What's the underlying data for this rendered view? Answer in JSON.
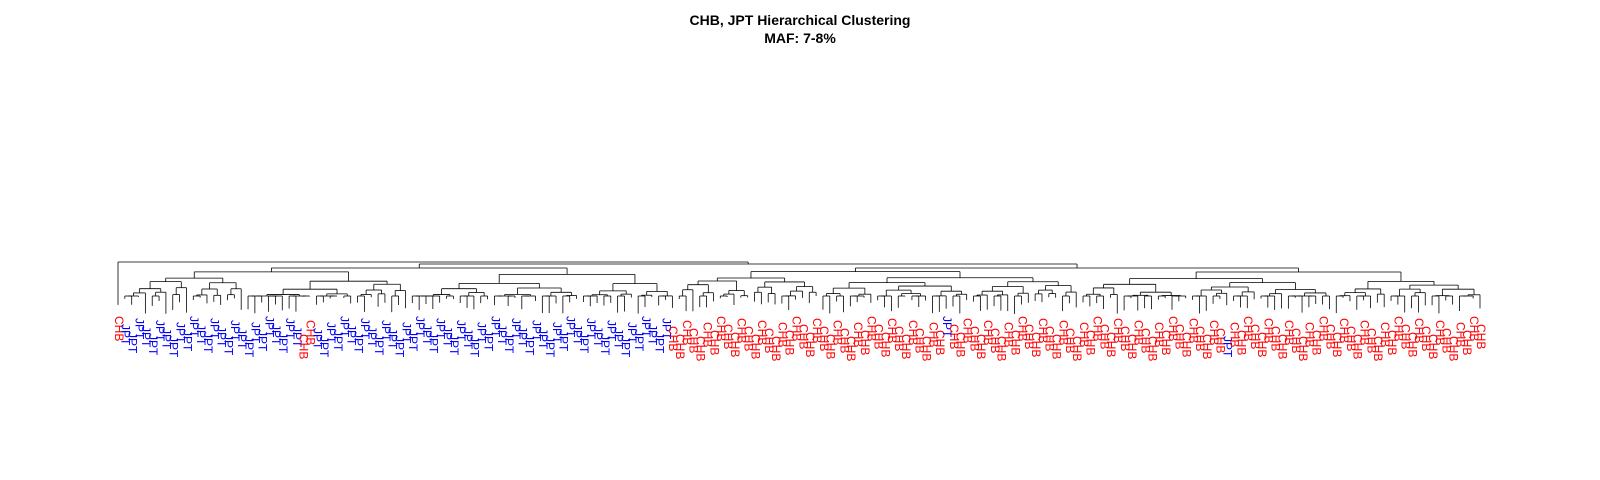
{
  "chart_data": {
    "type": "dendrogram",
    "title": "CHB, JPT Hierarchical Clustering",
    "subtitle": "MAF: 7-8%",
    "xlabel": "",
    "ylabel": "",
    "grid": false,
    "legend": "none",
    "colors": {
      "CHB": "#ff0000",
      "JPT": "#0000ff",
      "branches": "#000000"
    },
    "top_split": [
      "outlier CHB sample",
      "JPT cluster (with 3 CHB)",
      "CHB cluster (with 2 JPT)"
    ],
    "leaves": [
      "CHB",
      "JPT",
      "JPT",
      "JPT",
      "JPT",
      "JPT",
      "JPT",
      "JPT",
      "JPT",
      "JPT",
      "JPT",
      "JPT",
      "JPT",
      "JPT",
      "JPT",
      "JPT",
      "JPT",
      "JPT",
      "JPT",
      "JPT",
      "JPT",
      "JPT",
      "JPT",
      "JPT",
      "JPT",
      "JPT",
      "JPT",
      "CHB",
      "CHB",
      "JPT",
      "JPT",
      "JPT",
      "JPT",
      "JPT",
      "JPT",
      "JPT",
      "JPT",
      "JPT",
      "JPT",
      "JPT",
      "JPT",
      "JPT",
      "JPT",
      "JPT",
      "JPT",
      "JPT",
      "JPT",
      "JPT",
      "JPT",
      "JPT",
      "JPT",
      "JPT",
      "JPT",
      "JPT",
      "JPT",
      "JPT",
      "JPT",
      "JPT",
      "JPT",
      "JPT",
      "JPT",
      "JPT",
      "JPT",
      "JPT",
      "JPT",
      "JPT",
      "JPT",
      "JPT",
      "JPT",
      "JPT",
      "JPT",
      "JPT",
      "JPT",
      "JPT",
      "JPT",
      "JPT",
      "JPT",
      "JPT",
      "JPT",
      "JPT",
      "JPT",
      "CHB",
      "CHB",
      "CHB",
      "CHB",
      "CHB",
      "CHB",
      "CHB",
      "CHB",
      "CHB",
      "CHB",
      "CHB",
      "CHB",
      "CHB",
      "CHB",
      "CHB",
      "CHB",
      "CHB",
      "CHB",
      "CHB",
      "CHB",
      "CHB",
      "CHB",
      "CHB",
      "CHB",
      "CHB",
      "CHB",
      "CHB",
      "CHB",
      "CHB",
      "CHB",
      "CHB",
      "CHB",
      "CHB",
      "CHB",
      "CHB",
      "CHB",
      "CHB",
      "CHB",
      "CHB",
      "CHB",
      "JPT",
      "CHB",
      "CHB",
      "CHB",
      "CHB",
      "CHB",
      "CHB",
      "CHB",
      "CHB",
      "CHB",
      "CHB",
      "CHB",
      "CHB",
      "CHB",
      "CHB",
      "CHB",
      "CHB",
      "CHB",
      "CHB",
      "CHB",
      "CHB",
      "CHB",
      "CHB",
      "CHB",
      "CHB",
      "CHB",
      "CHB",
      "CHB",
      "CHB",
      "CHB",
      "CHB",
      "CHB",
      "CHB",
      "CHB",
      "CHB",
      "CHB",
      "CHB",
      "CHB",
      "CHB",
      "CHB",
      "CHB",
      "JPT",
      "CHB",
      "CHB",
      "CHB",
      "CHB",
      "CHB",
      "CHB",
      "CHB",
      "CHB",
      "CHB",
      "CHB",
      "CHB",
      "CHB",
      "CHB",
      "CHB",
      "CHB",
      "CHB",
      "CHB",
      "CHB",
      "CHB",
      "CHB",
      "CHB",
      "CHB",
      "CHB",
      "CHB",
      "CHB",
      "CHB",
      "CHB",
      "CHB",
      "CHB",
      "CHB",
      "CHB",
      "CHB",
      "CHB",
      "CHB",
      "CHB",
      "CHB",
      "CHB"
    ]
  }
}
